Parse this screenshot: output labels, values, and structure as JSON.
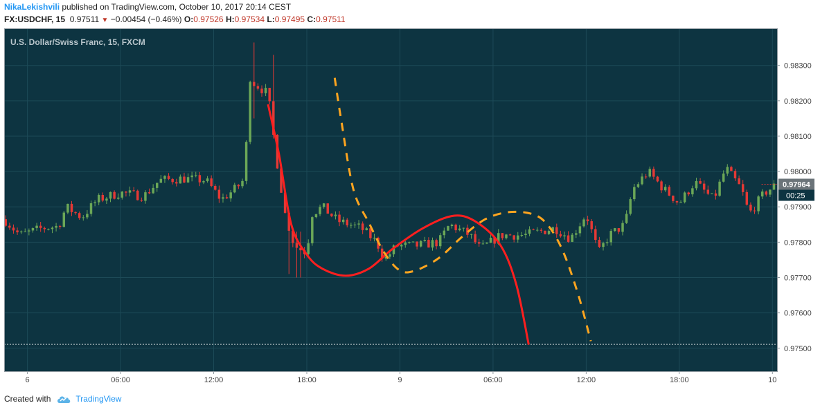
{
  "header": {
    "author": "NikaLekishvili",
    "published_text": " published on TradingView.com, October 10, 2017 20:14 CEST",
    "symbol": "FX:USDCHF, 15",
    "last": "0.97511",
    "change": "−0.00454 (−0.46%)",
    "open_label": "O:",
    "open": "0.97526",
    "high_label": "H:",
    "high": "0.97534",
    "low_label": "L:",
    "low": "0.97495",
    "close_label": "C:",
    "close": "0.97511"
  },
  "footer": {
    "created_with": "Created with",
    "brand": "TradingView"
  },
  "colors": {
    "background": "#0d3441",
    "up": "#6ba757",
    "down": "#e53935",
    "red_curve": "#ff1f1f",
    "orange_curve": "#ffa51f",
    "grid": "#1d4a57"
  },
  "chart_data": {
    "type": "candlestick",
    "title": "U.S. Dollar/Swiss Franc, 15, FXCM",
    "ylim": [
      0.97435,
      0.98405
    ],
    "y_ticks": [
      "0.98300",
      "0.98200",
      "0.98100",
      "0.98000",
      "0.97900",
      "0.97800",
      "0.97700",
      "0.97600",
      "0.97500"
    ],
    "y_tick_values": [
      0.983,
      0.982,
      0.981,
      0.98,
      0.979,
      0.978,
      0.977,
      0.976,
      0.975
    ],
    "x_ticks": [
      "6",
      "06:00",
      "12:00",
      "18:00",
      "9",
      "06:00",
      "12:00",
      "18:00",
      "10"
    ],
    "x_tick_hours": [
      0,
      6,
      12,
      18,
      24,
      30,
      36,
      42,
      48
    ],
    "x_range_hours": [
      -1.5,
      48.3
    ],
    "current_price_label": "0.97964",
    "current_price": 0.97964,
    "countdown": "00:25",
    "reference_line": 0.97511,
    "anchors": [
      [
        -1.5,
        0.97865
      ],
      [
        -0.5,
        0.9782
      ],
      [
        1.0,
        0.9784
      ],
      [
        2.0,
        0.97845
      ],
      [
        2.5,
        0.979
      ],
      [
        3.5,
        0.9787
      ],
      [
        4.5,
        0.9792
      ],
      [
        6.0,
        0.9794
      ],
      [
        7.5,
        0.9793
      ],
      [
        8.5,
        0.97975
      ],
      [
        10.0,
        0.9798
      ],
      [
        11.5,
        0.97975
      ],
      [
        12.5,
        0.9792
      ],
      [
        13.5,
        0.97955
      ],
      [
        14.0,
        0.9798
      ],
      [
        14.3,
        0.9827
      ],
      [
        14.6,
        0.9825
      ],
      [
        15.5,
        0.9822
      ],
      [
        16.0,
        0.9805
      ],
      [
        16.6,
        0.9788
      ],
      [
        17.2,
        0.9779
      ],
      [
        18.0,
        0.9777
      ],
      [
        18.3,
        0.9788
      ],
      [
        19.0,
        0.979
      ],
      [
        20.0,
        0.9786
      ],
      [
        21.5,
        0.9784
      ],
      [
        22.5,
        0.978
      ],
      [
        23.0,
        0.9775
      ],
      [
        23.8,
        0.9779
      ],
      [
        25.0,
        0.9779
      ],
      [
        26.5,
        0.978
      ],
      [
        27.2,
        0.9785
      ],
      [
        28.5,
        0.9782
      ],
      [
        29.2,
        0.9778
      ],
      [
        30.5,
        0.9782
      ],
      [
        32.0,
        0.9782
      ],
      [
        34.0,
        0.9784
      ],
      [
        35.0,
        0.9781
      ],
      [
        36.0,
        0.9788
      ],
      [
        36.8,
        0.9777
      ],
      [
        37.5,
        0.9782
      ],
      [
        38.5,
        0.9785
      ],
      [
        39.0,
        0.9795
      ],
      [
        40.0,
        0.98
      ],
      [
        41.0,
        0.9795
      ],
      [
        42.0,
        0.9791
      ],
      [
        43.0,
        0.9797
      ],
      [
        44.2,
        0.9792
      ],
      [
        45.0,
        0.9801
      ],
      [
        46.0,
        0.9795
      ],
      [
        46.5,
        0.9788
      ],
      [
        47.5,
        0.9794
      ],
      [
        48.3,
        0.97964
      ]
    ],
    "spikes": [
      {
        "t": 14.5,
        "high": 0.98365,
        "low": 0.9815
      },
      {
        "t": 15.8,
        "high": 0.9833,
        "low": 0.981
      },
      {
        "t": 16.8,
        "high": 0.9785,
        "low": 0.9771
      },
      {
        "t": 17.5,
        "high": 0.9783,
        "low": 0.977
      }
    ],
    "red_curve_points": [
      [
        15.5,
        0.9819
      ],
      [
        16.2,
        0.9805
      ],
      [
        17.0,
        0.9785
      ],
      [
        18.0,
        0.97765
      ],
      [
        19.0,
        0.97725
      ],
      [
        20.5,
        0.97705
      ],
      [
        22.0,
        0.97725
      ],
      [
        23.5,
        0.9778
      ],
      [
        25.5,
        0.9784
      ],
      [
        27.5,
        0.97875
      ],
      [
        29.0,
        0.97855
      ],
      [
        30.5,
        0.9779
      ],
      [
        31.5,
        0.9768
      ],
      [
        32.3,
        0.9751
      ]
    ],
    "orange_curve_points": [
      [
        19.8,
        0.98265
      ],
      [
        20.2,
        0.9815
      ],
      [
        21.0,
        0.9795
      ],
      [
        22.0,
        0.97855
      ],
      [
        23.0,
        0.9777
      ],
      [
        24.0,
        0.9772
      ],
      [
        25.0,
        0.9772
      ],
      [
        26.5,
        0.97755
      ],
      [
        28.0,
        0.97815
      ],
      [
        29.5,
        0.97865
      ],
      [
        31.0,
        0.97885
      ],
      [
        32.5,
        0.9788
      ],
      [
        33.5,
        0.9785
      ],
      [
        34.5,
        0.97775
      ],
      [
        35.5,
        0.9765
      ],
      [
        36.3,
        0.9752
      ]
    ]
  }
}
